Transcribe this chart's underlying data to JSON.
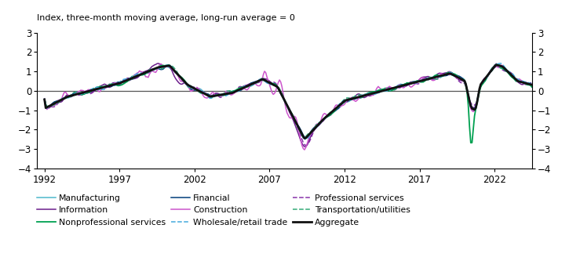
{
  "title": "Index, three-month moving average, long-run average = 0",
  "ylim": [
    -4,
    3
  ],
  "yticks": [
    -4,
    -3,
    -2,
    -1,
    0,
    1,
    2,
    3
  ],
  "xticks": [
    1992,
    1997,
    2002,
    2007,
    2012,
    2017,
    2022
  ],
  "xlim": [
    1991.5,
    2024.5
  ],
  "series": {
    "Manufacturing": {
      "color": "#4DB8CC",
      "lw": 1.1,
      "ls": "-",
      "zorder": 3
    },
    "Information": {
      "color": "#6B1E8B",
      "lw": 1.1,
      "ls": "-",
      "zorder": 3
    },
    "Nonprofessional services": {
      "color": "#00A050",
      "lw": 1.3,
      "ls": "-",
      "zorder": 3
    },
    "Financial": {
      "color": "#003D7A",
      "lw": 1.1,
      "ls": "-",
      "zorder": 3
    },
    "Construction": {
      "color": "#CC55CC",
      "lw": 1.1,
      "ls": "-",
      "zorder": 3
    },
    "Wholesale/retail trade": {
      "color": "#44AADD",
      "lw": 1.1,
      "ls": "--",
      "zorder": 3
    },
    "Professional services": {
      "color": "#8833AA",
      "lw": 1.1,
      "ls": "--",
      "zorder": 3
    },
    "Transportation/utilities": {
      "color": "#33AA77",
      "lw": 1.1,
      "ls": "--",
      "zorder": 3
    },
    "Aggregate": {
      "color": "#111111",
      "lw": 2.0,
      "ls": "-",
      "zorder": 5
    }
  },
  "legend_cols": [
    [
      "Manufacturing",
      "Financial",
      "Professional services"
    ],
    [
      "Information",
      "Construction",
      "Transportation/utilities"
    ],
    [
      "Nonprofessional services",
      "Wholesale/retail trade",
      "Aggregate"
    ]
  ]
}
